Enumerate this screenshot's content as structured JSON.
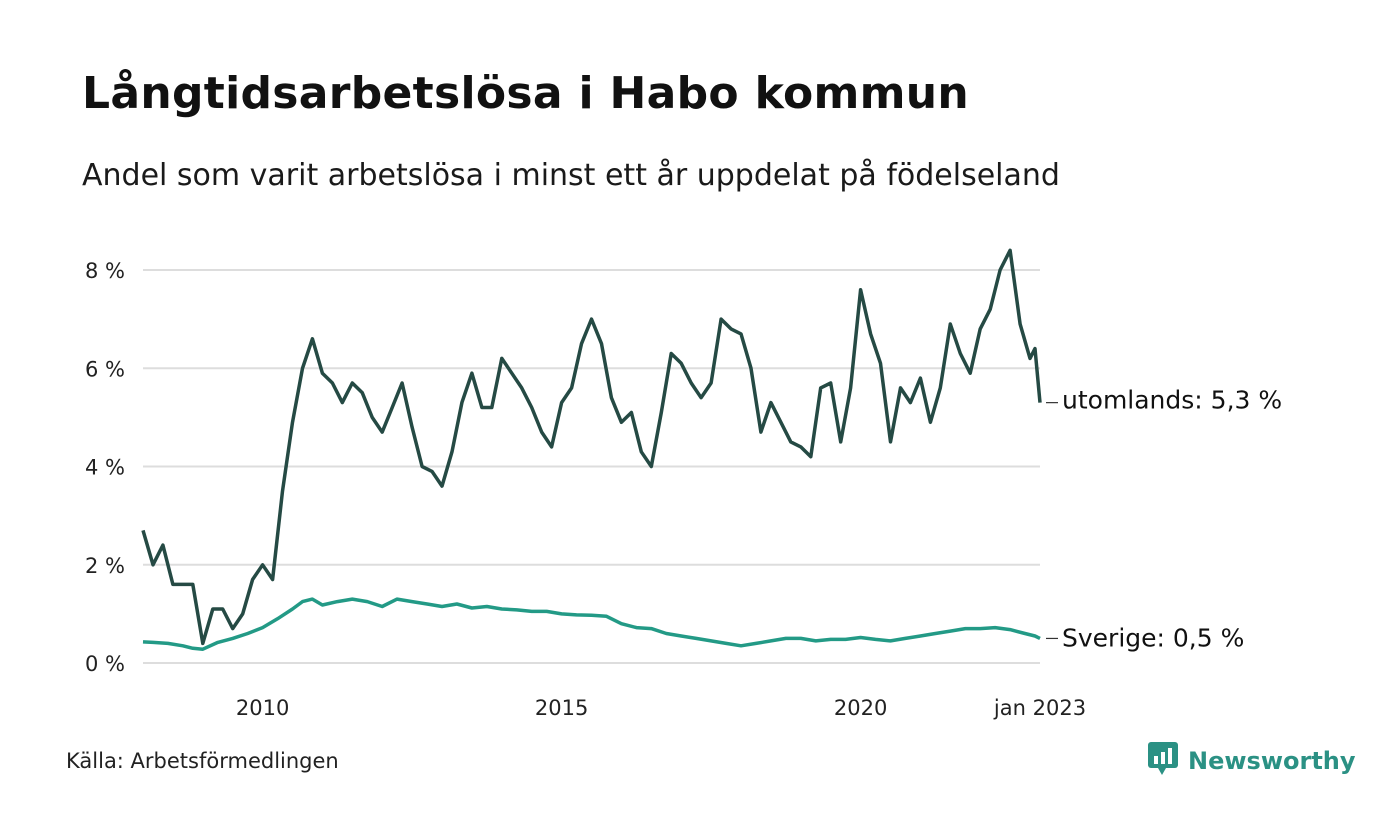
{
  "title": "Långtidsarbetslösa i Habo kommun",
  "subtitle": "Andel som varit arbetslösa i minst ett år uppdelat på födelseland",
  "source": "Källa: Arbetsförmedlingen",
  "brand": {
    "name": "Newsworthy",
    "color": "#2b9184",
    "icon": "newsworthy-logo-icon"
  },
  "colors": {
    "utomlands": "#254a44",
    "sverige": "#239a86",
    "grid": "#dddddd"
  },
  "chart_data": {
    "type": "line",
    "title": "Långtidsarbetslösa i Habo kommun",
    "subtitle": "Andel som varit arbetslösa i minst ett år uppdelat på födelseland",
    "ylim": [
      0,
      8.6
    ],
    "y_ticks": [
      0,
      2,
      4,
      6,
      8
    ],
    "y_tick_labels": [
      "0 %",
      "2 %",
      "4 %",
      "6 %",
      "8 %"
    ],
    "x_tick_labels": [
      {
        "x": "2010-01",
        "label": "2010"
      },
      {
        "x": "2015-01",
        "label": "2015"
      },
      {
        "x": "2020-01",
        "label": "2020"
      },
      {
        "x": "2023-01",
        "label": "jan 2023"
      }
    ],
    "x_start": "2008-01",
    "x_end": "2023-01",
    "grid": true,
    "legend": "end-of-line labels",
    "series": [
      {
        "name": "utomlands",
        "end_label": "utomlands: 5,3 %",
        "points": [
          [
            "2008-01",
            2.7
          ],
          [
            "2008-03",
            2.0
          ],
          [
            "2008-05",
            2.4
          ],
          [
            "2008-07",
            1.6
          ],
          [
            "2008-11",
            1.6
          ],
          [
            "2009-01",
            0.4
          ],
          [
            "2009-03",
            1.1
          ],
          [
            "2009-05",
            1.1
          ],
          [
            "2009-07",
            0.7
          ],
          [
            "2009-09",
            1.0
          ],
          [
            "2009-11",
            1.7
          ],
          [
            "2010-01",
            2.0
          ],
          [
            "2010-03",
            1.7
          ],
          [
            "2010-05",
            3.5
          ],
          [
            "2010-07",
            4.9
          ],
          [
            "2010-09",
            6.0
          ],
          [
            "2010-11",
            6.6
          ],
          [
            "2011-01",
            5.9
          ],
          [
            "2011-03",
            5.7
          ],
          [
            "2011-05",
            5.3
          ],
          [
            "2011-07",
            5.7
          ],
          [
            "2011-09",
            5.5
          ],
          [
            "2011-11",
            5.0
          ],
          [
            "2012-01",
            4.7
          ],
          [
            "2012-03",
            5.2
          ],
          [
            "2012-05",
            5.7
          ],
          [
            "2012-07",
            4.8
          ],
          [
            "2012-09",
            4.0
          ],
          [
            "2012-11",
            3.9
          ],
          [
            "2013-01",
            3.6
          ],
          [
            "2013-03",
            4.3
          ],
          [
            "2013-05",
            5.3
          ],
          [
            "2013-07",
            5.9
          ],
          [
            "2013-09",
            5.2
          ],
          [
            "2013-11",
            5.2
          ],
          [
            "2014-01",
            6.2
          ],
          [
            "2014-03",
            5.9
          ],
          [
            "2014-05",
            5.6
          ],
          [
            "2014-07",
            5.2
          ],
          [
            "2014-09",
            4.7
          ],
          [
            "2014-11",
            4.4
          ],
          [
            "2015-01",
            5.3
          ],
          [
            "2015-03",
            5.6
          ],
          [
            "2015-05",
            6.5
          ],
          [
            "2015-07",
            7.0
          ],
          [
            "2015-09",
            6.5
          ],
          [
            "2015-11",
            5.4
          ],
          [
            "2016-01",
            4.9
          ],
          [
            "2016-03",
            5.1
          ],
          [
            "2016-05",
            4.3
          ],
          [
            "2016-07",
            4.0
          ],
          [
            "2016-09",
            5.1
          ],
          [
            "2016-11",
            6.3
          ],
          [
            "2017-01",
            6.1
          ],
          [
            "2017-03",
            5.7
          ],
          [
            "2017-05",
            5.4
          ],
          [
            "2017-07",
            5.7
          ],
          [
            "2017-09",
            7.0
          ],
          [
            "2017-11",
            6.8
          ],
          [
            "2018-01",
            6.7
          ],
          [
            "2018-03",
            6.0
          ],
          [
            "2018-05",
            4.7
          ],
          [
            "2018-07",
            5.3
          ],
          [
            "2018-09",
            4.9
          ],
          [
            "2018-11",
            4.5
          ],
          [
            "2019-01",
            4.4
          ],
          [
            "2019-03",
            4.2
          ],
          [
            "2019-05",
            5.6
          ],
          [
            "2019-07",
            5.7
          ],
          [
            "2019-09",
            4.5
          ],
          [
            "2019-11",
            5.6
          ],
          [
            "2020-01",
            7.6
          ],
          [
            "2020-03",
            6.7
          ],
          [
            "2020-05",
            6.1
          ],
          [
            "2020-07",
            4.5
          ],
          [
            "2020-09",
            5.6
          ],
          [
            "2020-11",
            5.3
          ],
          [
            "2021-01",
            5.8
          ],
          [
            "2021-03",
            4.9
          ],
          [
            "2021-05",
            5.6
          ],
          [
            "2021-07",
            6.9
          ],
          [
            "2021-09",
            6.3
          ],
          [
            "2021-11",
            5.9
          ],
          [
            "2022-01",
            6.8
          ],
          [
            "2022-03",
            7.2
          ],
          [
            "2022-05",
            8.0
          ],
          [
            "2022-07",
            8.4
          ],
          [
            "2022-09",
            6.9
          ],
          [
            "2022-11",
            6.2
          ],
          [
            "2022-12",
            6.4
          ],
          [
            "2023-01",
            5.3
          ]
        ]
      },
      {
        "name": "Sverige",
        "end_label": "Sverige: 0,5 %",
        "points": [
          [
            "2008-01",
            0.43
          ],
          [
            "2008-03",
            0.42
          ],
          [
            "2008-06",
            0.4
          ],
          [
            "2008-09",
            0.35
          ],
          [
            "2008-11",
            0.3
          ],
          [
            "2009-01",
            0.28
          ],
          [
            "2009-04",
            0.42
          ],
          [
            "2009-07",
            0.5
          ],
          [
            "2009-10",
            0.6
          ],
          [
            "2010-01",
            0.72
          ],
          [
            "2010-04",
            0.9
          ],
          [
            "2010-07",
            1.1
          ],
          [
            "2010-09",
            1.25
          ],
          [
            "2010-11",
            1.3
          ],
          [
            "2011-01",
            1.18
          ],
          [
            "2011-04",
            1.25
          ],
          [
            "2011-07",
            1.3
          ],
          [
            "2011-10",
            1.25
          ],
          [
            "2012-01",
            1.15
          ],
          [
            "2012-04",
            1.3
          ],
          [
            "2012-07",
            1.25
          ],
          [
            "2012-10",
            1.2
          ],
          [
            "2013-01",
            1.15
          ],
          [
            "2013-04",
            1.2
          ],
          [
            "2013-07",
            1.12
          ],
          [
            "2013-10",
            1.15
          ],
          [
            "2014-01",
            1.1
          ],
          [
            "2014-04",
            1.08
          ],
          [
            "2014-07",
            1.05
          ],
          [
            "2014-10",
            1.05
          ],
          [
            "2015-01",
            1.0
          ],
          [
            "2015-04",
            0.98
          ],
          [
            "2015-07",
            0.97
          ],
          [
            "2015-10",
            0.95
          ],
          [
            "2016-01",
            0.8
          ],
          [
            "2016-04",
            0.72
          ],
          [
            "2016-07",
            0.7
          ],
          [
            "2016-10",
            0.6
          ],
          [
            "2017-01",
            0.55
          ],
          [
            "2017-04",
            0.5
          ],
          [
            "2017-07",
            0.45
          ],
          [
            "2017-10",
            0.4
          ],
          [
            "2018-01",
            0.35
          ],
          [
            "2018-04",
            0.4
          ],
          [
            "2018-07",
            0.45
          ],
          [
            "2018-10",
            0.5
          ],
          [
            "2019-01",
            0.5
          ],
          [
            "2019-04",
            0.45
          ],
          [
            "2019-07",
            0.48
          ],
          [
            "2019-10",
            0.48
          ],
          [
            "2020-01",
            0.52
          ],
          [
            "2020-04",
            0.48
          ],
          [
            "2020-07",
            0.45
          ],
          [
            "2020-10",
            0.5
          ],
          [
            "2021-01",
            0.55
          ],
          [
            "2021-04",
            0.6
          ],
          [
            "2021-07",
            0.65
          ],
          [
            "2021-10",
            0.7
          ],
          [
            "2022-01",
            0.7
          ],
          [
            "2022-04",
            0.72
          ],
          [
            "2022-07",
            0.68
          ],
          [
            "2022-10",
            0.6
          ],
          [
            "2022-12",
            0.55
          ],
          [
            "2023-01",
            0.5
          ]
        ]
      }
    ]
  }
}
